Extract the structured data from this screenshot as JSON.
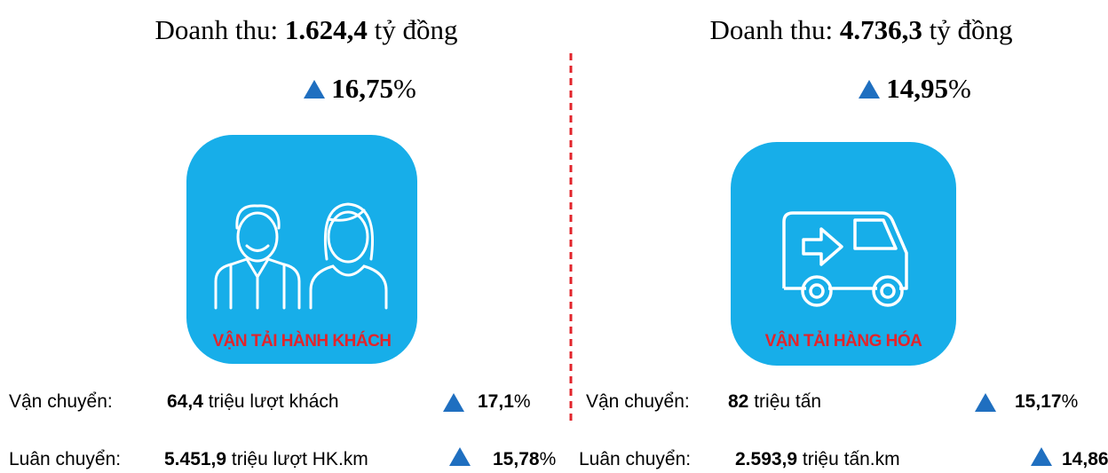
{
  "panels": [
    {
      "revenue": {
        "label": "Doanh thu:",
        "value": "1.624,4",
        "unit": "tỷ đồng"
      },
      "change": {
        "value": "16,75",
        "unit": "%"
      },
      "icon_label": "VẬN TẢI HÀNH KHÁCH",
      "rows": [
        {
          "label": "Vận chuyển:",
          "value": "64,4",
          "unit": "triệu lượt khách",
          "change": {
            "value": "17,1",
            "unit": "%"
          }
        },
        {
          "label": "Luân chuyển:",
          "value": "5.451,9",
          "unit": "triệu lượt HK.km",
          "change": {
            "value": "15,78",
            "unit": "%"
          }
        }
      ]
    },
    {
      "revenue": {
        "label": "Doanh thu:",
        "value": "4.736,3",
        "unit": "tỷ đồng"
      },
      "change": {
        "value": "14,95",
        "unit": "%"
      },
      "icon_label": "VẬN TẢI HÀNG HÓA",
      "rows": [
        {
          "label": "Vận chuyển:",
          "value": "82",
          "unit": "triệu tấn",
          "change": {
            "value": "15,17",
            "unit": "%"
          }
        },
        {
          "label": "Luân chuyển:",
          "value": "2.593,9",
          "unit": "triệu tấn.km",
          "change": {
            "value": "14,86",
            "unit": "%"
          }
        }
      ]
    }
  ]
}
